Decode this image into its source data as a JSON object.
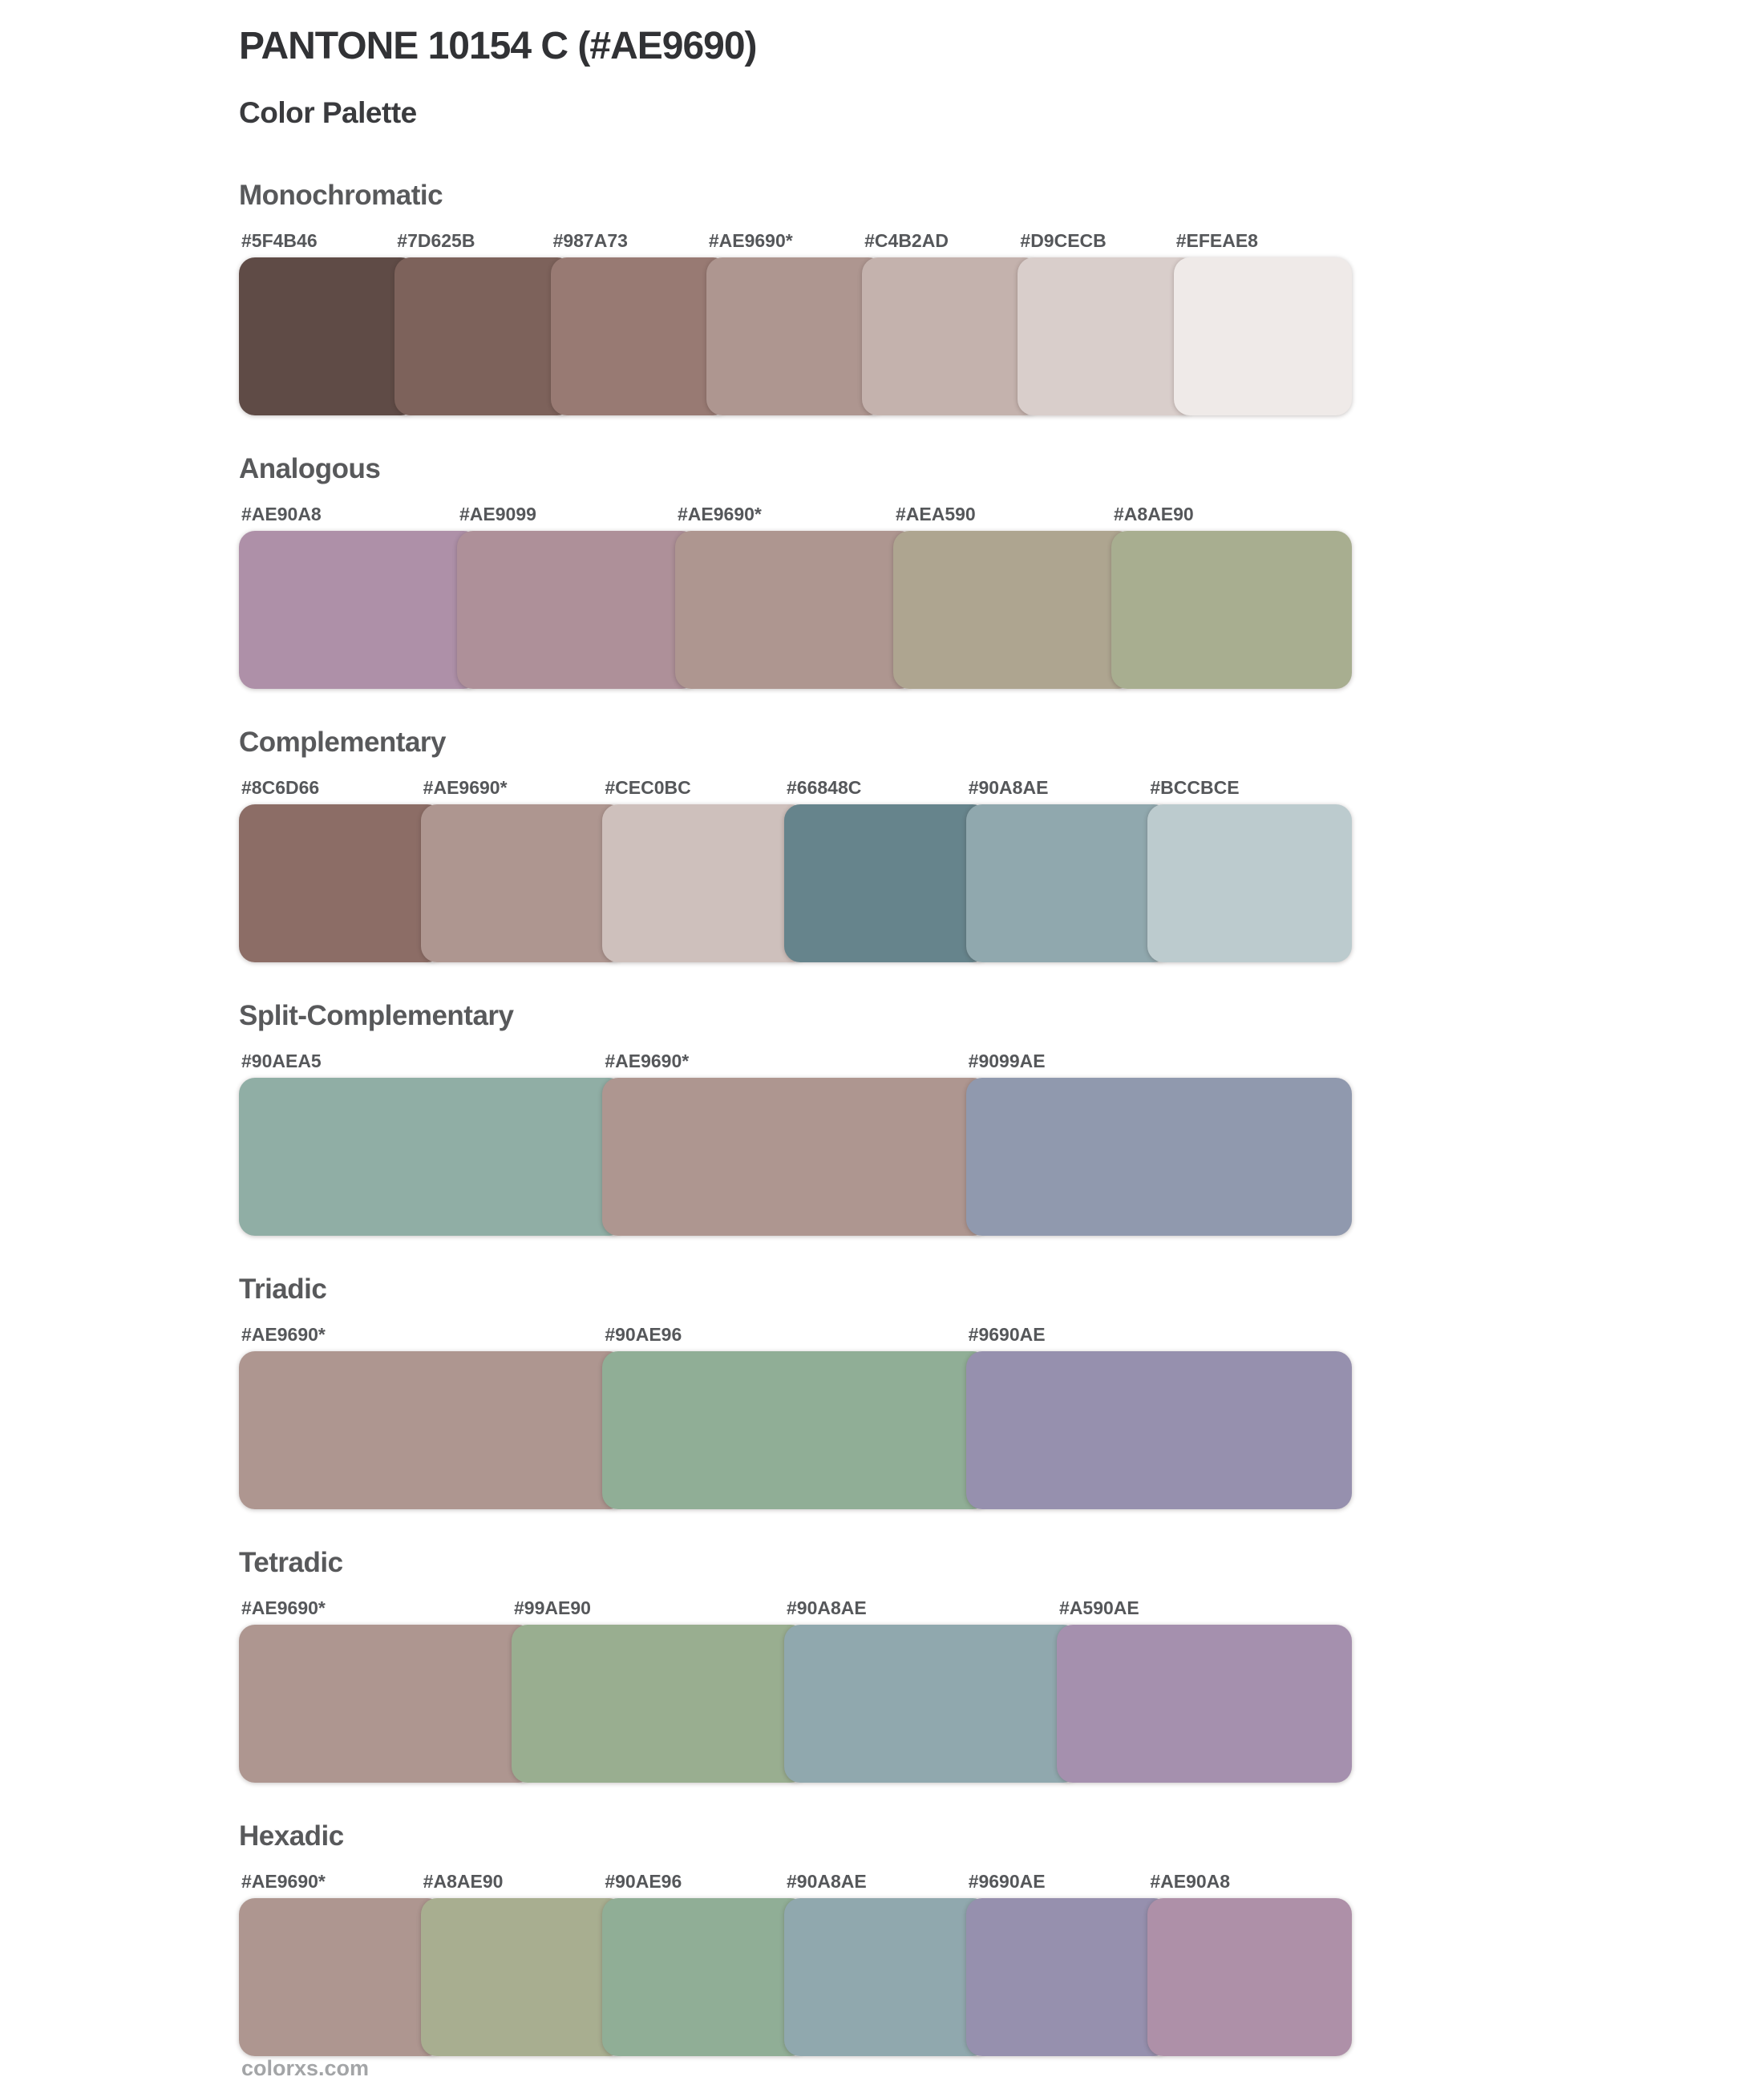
{
  "page": {
    "title": "PANTONE 10154 C (#AE9690)",
    "subtitle": "Color Palette",
    "footer_site": "colorxs.com"
  },
  "base_color": "#AE9690",
  "theme": {
    "title_color": "#313235",
    "heading_color": "#58595b",
    "label_color": "#55575a",
    "footer_color": "#a3a5a7",
    "background": "#ffffff"
  },
  "sections": [
    {
      "name": "Monochromatic",
      "swatches": [
        {
          "label": "#5F4B46",
          "hex": "#5F4B46"
        },
        {
          "label": "#7D625B",
          "hex": "#7D625B"
        },
        {
          "label": "#987A73",
          "hex": "#987A73"
        },
        {
          "label": "#AE9690*",
          "hex": "#AE9690"
        },
        {
          "label": "#C4B2AD",
          "hex": "#C4B2AD"
        },
        {
          "label": "#D9CECB",
          "hex": "#D9CECB"
        },
        {
          "label": "#EFEAE8",
          "hex": "#EFEAE8"
        }
      ]
    },
    {
      "name": "Analogous",
      "swatches": [
        {
          "label": "#AE90A8",
          "hex": "#AE90A8"
        },
        {
          "label": "#AE9099",
          "hex": "#AE9099"
        },
        {
          "label": "#AE9690*",
          "hex": "#AE9690"
        },
        {
          "label": "#AEA590",
          "hex": "#AEA590"
        },
        {
          "label": "#A8AE90",
          "hex": "#A8AE90"
        }
      ]
    },
    {
      "name": "Complementary",
      "swatches": [
        {
          "label": "#8C6D66",
          "hex": "#8C6D66"
        },
        {
          "label": "#AE9690*",
          "hex": "#AE9690"
        },
        {
          "label": "#CEC0BC",
          "hex": "#CEC0BC"
        },
        {
          "label": "#66848C",
          "hex": "#66848C"
        },
        {
          "label": "#90A8AE",
          "hex": "#90A8AE"
        },
        {
          "label": "#BCCBCE",
          "hex": "#BCCBCE"
        }
      ]
    },
    {
      "name": "Split-Complementary",
      "swatches": [
        {
          "label": "#90AEA5",
          "hex": "#90AEA5"
        },
        {
          "label": "#AE9690*",
          "hex": "#AE9690"
        },
        {
          "label": "#9099AE",
          "hex": "#9099AE"
        }
      ]
    },
    {
      "name": "Triadic",
      "swatches": [
        {
          "label": "#AE9690*",
          "hex": "#AE9690"
        },
        {
          "label": "#90AE96",
          "hex": "#90AE96"
        },
        {
          "label": "#9690AE",
          "hex": "#9690AE"
        }
      ]
    },
    {
      "name": "Tetradic",
      "swatches": [
        {
          "label": "#AE9690*",
          "hex": "#AE9690"
        },
        {
          "label": "#99AE90",
          "hex": "#99AE90"
        },
        {
          "label": "#90A8AE",
          "hex": "#90A8AE"
        },
        {
          "label": "#A590AE",
          "hex": "#A590AE"
        }
      ]
    },
    {
      "name": "Hexadic",
      "swatches": [
        {
          "label": "#AE9690*",
          "hex": "#AE9690"
        },
        {
          "label": "#A8AE90",
          "hex": "#A8AE90"
        },
        {
          "label": "#90AE96",
          "hex": "#90AE96"
        },
        {
          "label": "#90A8AE",
          "hex": "#90A8AE"
        },
        {
          "label": "#9690AE",
          "hex": "#9690AE"
        },
        {
          "label": "#AE90A8",
          "hex": "#AE90A8"
        }
      ]
    }
  ]
}
